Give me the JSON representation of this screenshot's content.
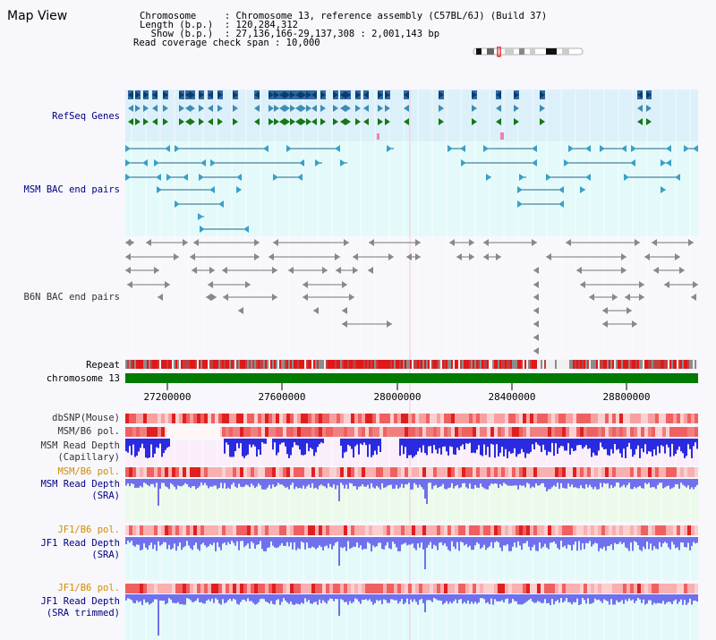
{
  "header": {
    "title": "Map View",
    "info_lines": [
      "Chromosome     : Chromosome 13, reference assembly (C57BL/6J) (Build 37)",
      "Length (b.p.)  : 120,284,312",
      "  Show (b.p.)  : 27,136,166-29,137,308 : 2,001,143 bp",
      "Read coverage check span : 10,000"
    ]
  },
  "tracks": {
    "refseq": {
      "label": "RefSeq Genes",
      "color": "#000080"
    },
    "msm_bac": {
      "label": "MSM BAC end pairs",
      "color": "#000080"
    },
    "b6n_bac": {
      "label": "B6N BAC end pairs",
      "color": "#333333"
    },
    "repeat": {
      "label": "Repeat"
    },
    "chromosome": {
      "label": "chromosome 13",
      "color": "#008000"
    },
    "dbsnp": {
      "label": "dbSNP(Mouse)"
    },
    "msm_b6_pol_1": {
      "label": "MSM/B6 pol."
    },
    "msm_depth_cap": {
      "line1": "MSM Read Depth",
      "line2": "(Capillary)"
    },
    "msm_b6_pol_2": {
      "label": "MSM/B6 pol.",
      "color": "#d48c00"
    },
    "msm_depth_sra": {
      "line1": "MSM Read Depth",
      "line2": "(SRA)"
    },
    "jf1_b6_pol_1": {
      "label": "JF1/B6 pol.",
      "color": "#d48c00"
    },
    "jf1_depth_sra": {
      "line1": "JF1 Read Depth",
      "line2": "(SRA)"
    },
    "jf1_b6_pol_2": {
      "label": "JF1/B6 pol.",
      "color": "#d48c00"
    },
    "jf1_depth_trim": {
      "line1": "JF1 Read Depth",
      "line2": "(SRA trimmed)"
    }
  },
  "scale": {
    "ticks": [
      "27200000",
      "27600000",
      "28000000",
      "28400000",
      "28800000"
    ]
  },
  "colors": {
    "refseq_bg": "#dcf0fa",
    "msm_bac_bg": "#e4fafa",
    "b6n_bac_bg": "#f7f7fc",
    "cap_bg": "#faeefa",
    "sra_bg": "#ecfaec",
    "jf1_bg": "#e4fafa",
    "depth_blue": "#2a2ae0",
    "sra_blue": "#7070ee",
    "chromosome_green": "#007a00",
    "repeat_red": "#e01818"
  }
}
